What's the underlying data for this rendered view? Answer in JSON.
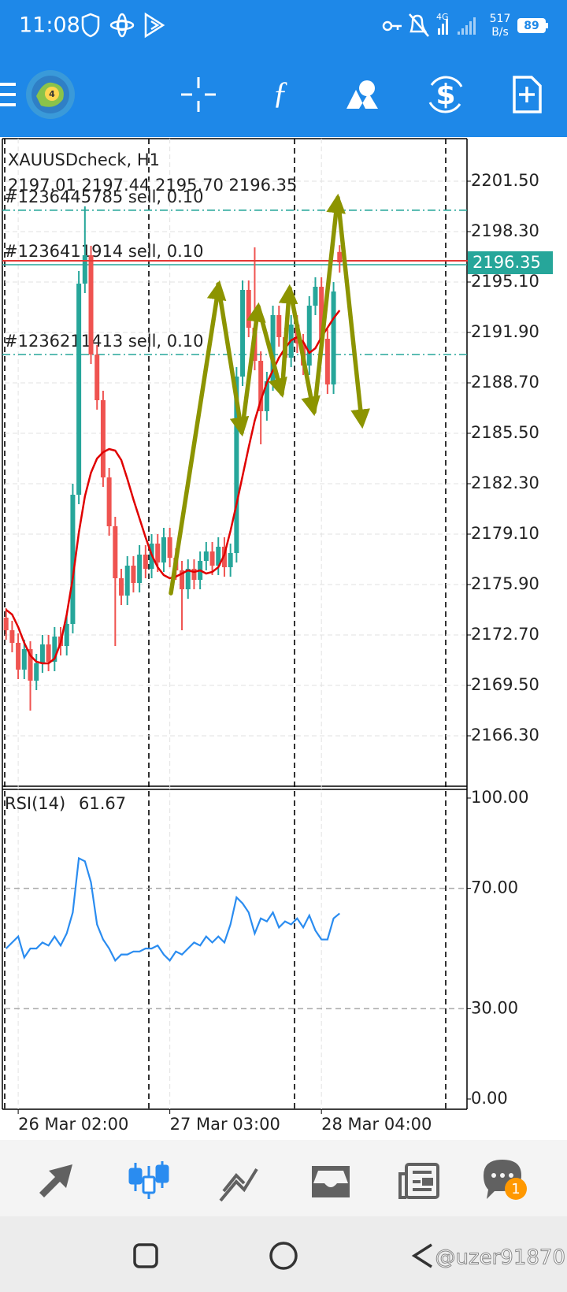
{
  "status_bar": {
    "time": "11:08",
    "network": "4G",
    "speed": "517",
    "speed_unit": "B/s",
    "battery": "89"
  },
  "chart": {
    "type": "candlestick",
    "title": "XAUUSDcheck, H1",
    "ohlc_text": "2197.01 2197.44 2195.70 2196.35",
    "up_color": "#26a69a",
    "down_color": "#ef5350",
    "open": [
      2173.8,
      2173.0,
      2172.2,
      2170.5,
      2171.8,
      2169.8,
      2170.9,
      2172.1,
      2171.0,
      2172.6,
      2172.0,
      2173.4,
      2181.6,
      2195.0,
      2196.8,
      2190.5,
      2187.6,
      2182.7,
      2179.6,
      2176.3,
      2175.2,
      2177.1,
      2176.0,
      2177.8,
      2176.9,
      2178.5,
      2177.3,
      2178.9,
      2177.6,
      2176.8,
      2175.6,
      2176.9,
      2176.2,
      2177.4,
      2178.0,
      2177.1,
      2178.3,
      2177.0,
      2177.9,
      2189.1,
      2194.6,
      2192.2,
      2190.1,
      2186.9,
      2188.8,
      2193.0,
      2191.6,
      2190.3,
      2192.4,
      2191.2,
      2189.8,
      2193.6,
      2194.8,
      2191.5,
      2188.6,
      2197.01
    ],
    "high": [
      2174.4,
      2173.6,
      2172.8,
      2172.4,
      2172.3,
      2171.5,
      2172.7,
      2172.7,
      2173.2,
      2173.2,
      2174.0,
      2182.3,
      2195.8,
      2199.9,
      2197.4,
      2191.1,
      2188.2,
      2183.3,
      2180.2,
      2176.9,
      2177.7,
      2177.7,
      2178.4,
      2178.4,
      2179.1,
      2179.1,
      2179.5,
      2179.5,
      2178.2,
      2177.4,
      2177.5,
      2177.5,
      2178.0,
      2178.6,
      2178.6,
      2178.9,
      2178.9,
      2178.5,
      2189.7,
      2195.2,
      2195.2,
      2197.3,
      2190.7,
      2189.4,
      2193.6,
      2193.6,
      2192.2,
      2193.0,
      2193.0,
      2191.8,
      2194.2,
      2195.4,
      2195.4,
      2192.1,
      2195.1,
      2197.44
    ],
    "low": [
      2172.4,
      2171.6,
      2169.9,
      2169.9,
      2167.9,
      2169.2,
      2170.3,
      2170.4,
      2170.4,
      2171.4,
      2171.4,
      2172.8,
      2181.0,
      2194.4,
      2189.9,
      2187.0,
      2182.1,
      2179.0,
      2172.0,
      2174.6,
      2174.6,
      2175.4,
      2175.4,
      2176.3,
      2176.3,
      2176.7,
      2176.7,
      2177.0,
      2176.2,
      2173.0,
      2175.0,
      2175.6,
      2175.6,
      2176.8,
      2176.5,
      2176.5,
      2176.4,
      2176.4,
      2177.3,
      2188.5,
      2191.6,
      2189.5,
      2184.8,
      2186.3,
      2188.2,
      2191.0,
      2189.7,
      2189.7,
      2190.6,
      2189.2,
      2189.2,
      2193.0,
      2190.9,
      2188.0,
      2188.0,
      2195.7
    ],
    "close": [
      2173.0,
      2172.2,
      2170.5,
      2171.8,
      2169.8,
      2170.9,
      2172.1,
      2171.0,
      2172.6,
      2172.0,
      2173.4,
      2181.6,
      2195.0,
      2196.8,
      2190.5,
      2187.6,
      2182.7,
      2179.6,
      2176.3,
      2175.2,
      2177.1,
      2176.0,
      2177.8,
      2176.9,
      2178.5,
      2177.3,
      2178.9,
      2177.6,
      2176.8,
      2175.6,
      2176.9,
      2176.2,
      2177.4,
      2178.0,
      2177.1,
      2178.3,
      2177.0,
      2177.9,
      2189.1,
      2194.6,
      2192.2,
      2190.1,
      2186.9,
      2188.8,
      2193.0,
      2191.6,
      2190.3,
      2192.4,
      2191.2,
      2189.8,
      2193.6,
      2194.8,
      2191.5,
      2188.6,
      2194.5,
      2196.35
    ],
    "ma": {
      "color": "#e00000",
      "values": [
        2174.3,
        2174.0,
        2173.2,
        2172.2,
        2171.4,
        2171.0,
        2170.9,
        2170.9,
        2171.2,
        2172.2,
        2174.0,
        2176.3,
        2179.2,
        2181.5,
        2183.0,
        2183.9,
        2184.3,
        2184.5,
        2184.4,
        2183.8,
        2182.6,
        2181.3,
        2180.1,
        2178.9,
        2177.8,
        2177.0,
        2176.5,
        2176.3,
        2176.4,
        2176.6,
        2176.8,
        2176.7,
        2176.8,
        2176.6,
        2176.7,
        2177.0,
        2177.8,
        2179.3,
        2181.0,
        2182.8,
        2184.6,
        2186.3,
        2187.6,
        2188.7,
        2189.5,
        2190.3,
        2190.9,
        2191.4,
        2191.6,
        2191.3,
        2190.6,
        2190.9,
        2191.6,
        2192.2,
        2192.8,
        2193.3
      ]
    },
    "xlim": [
      -1,
      76
    ],
    "ylim": [
      2163.1,
      2204.2
    ],
    "yticks": [
      {
        "value": 2201.5,
        "label": "2201.50"
      },
      {
        "value": 2198.3,
        "label": "2198.30"
      },
      {
        "value": 2195.1,
        "label": "2195.10"
      },
      {
        "value": 2191.9,
        "label": "2191.90"
      },
      {
        "value": 2188.7,
        "label": "2188.70"
      },
      {
        "value": 2185.5,
        "label": "2185.50"
      },
      {
        "value": 2182.3,
        "label": "2182.30"
      },
      {
        "value": 2179.1,
        "label": "2179.10"
      },
      {
        "value": 2175.9,
        "label": "2175.90"
      },
      {
        "value": 2172.7,
        "label": "2172.70"
      },
      {
        "value": 2169.5,
        "label": "2169.50"
      },
      {
        "value": 2166.3,
        "label": "2166.30"
      }
    ],
    "xticks": [
      {
        "value": 2,
        "label": "26 Mar 02:00"
      },
      {
        "value": 27,
        "label": "27 Mar 03:00"
      },
      {
        "value": 52,
        "label": "28 Mar 04:00"
      }
    ],
    "bid": 2196.35,
    "orders": [
      {
        "label": "#1236445785 sell, 0.10",
        "price": 2199.66
      },
      {
        "label": "#1236411914 sell, 0.10",
        "price": 2196.2
      },
      {
        "label": "#1236211413 sell, 0.10",
        "price": 2190.5
      }
    ],
    "rsi": {
      "title": "RSI(14)",
      "color": "#2a8cf0",
      "values": [
        50,
        52,
        54,
        47,
        50,
        50,
        52,
        51,
        54,
        51,
        55,
        62,
        80,
        79,
        72,
        58,
        53,
        50,
        46,
        48,
        48,
        49,
        49,
        50,
        50,
        51,
        48,
        46,
        49,
        48,
        50,
        52,
        51,
        54,
        52,
        54,
        52,
        58,
        67,
        65,
        62,
        55,
        60,
        59,
        62,
        57,
        59,
        58,
        60,
        57,
        61,
        56,
        53,
        53,
        60,
        61.67
      ],
      "ylim": [
        0,
        100
      ],
      "yticks": [
        {
          "value": 100,
          "label": "100.00"
        },
        {
          "value": 70,
          "label": "70.00"
        },
        {
          "value": 30,
          "label": "30.00"
        },
        {
          "value": 0,
          "label": "0.00"
        }
      ],
      "levels": [
        70,
        30
      ]
    }
  },
  "bottom_nav": {
    "badge": "1"
  },
  "watermark": "@uzer91870"
}
